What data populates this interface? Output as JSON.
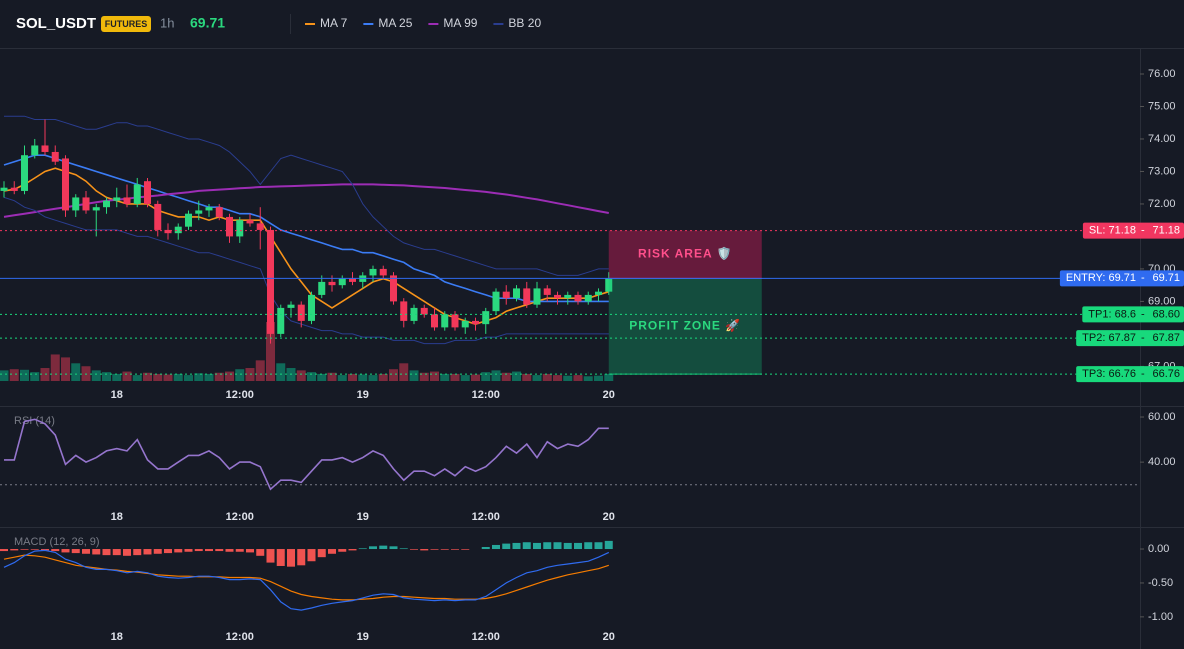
{
  "chart_data": {
    "type": "candlestick",
    "symbol": "SOL_USDT",
    "badge": "FUTURES",
    "interval": "1h",
    "last_price": 69.71,
    "categories": [
      null,
      null,
      null,
      null,
      null,
      null,
      null,
      null,
      null,
      null,
      null,
      "18",
      null,
      null,
      null,
      null,
      null,
      null,
      null,
      null,
      null,
      null,
      null,
      "12:00",
      null,
      null,
      null,
      null,
      null,
      null,
      null,
      null,
      null,
      null,
      null,
      "19",
      null,
      null,
      null,
      null,
      null,
      null,
      null,
      null,
      null,
      null,
      null,
      "12:00",
      null,
      null,
      null,
      null,
      null,
      null,
      null,
      null,
      null,
      null,
      null,
      "20"
    ],
    "open": [
      72.4,
      72.5,
      72.4,
      73.5,
      73.8,
      73.6,
      73.4,
      71.8,
      72.2,
      71.8,
      71.9,
      72.1,
      72.2,
      72.0,
      72.7,
      72.0,
      71.2,
      71.1,
      71.3,
      71.7,
      71.8,
      71.9,
      71.6,
      71.0,
      71.5,
      71.4,
      71.2,
      68.0,
      68.8,
      68.9,
      68.4,
      69.2,
      69.6,
      69.5,
      69.7,
      69.6,
      69.8,
      70.0,
      69.8,
      69.0,
      68.4,
      68.8,
      68.6,
      68.2,
      68.6,
      68.2,
      68.4,
      68.3,
      68.7,
      69.3,
      69.1,
      69.4,
      68.9,
      69.4,
      69.2,
      69.1,
      69.2,
      69.0,
      69.2,
      69.3
    ],
    "high": [
      72.7,
      72.7,
      73.8,
      74.0,
      74.6,
      73.8,
      73.5,
      72.3,
      72.4,
      72.0,
      72.2,
      72.5,
      72.6,
      72.8,
      72.8,
      72.1,
      71.4,
      71.4,
      71.8,
      72.1,
      72.0,
      72.0,
      71.7,
      71.6,
      71.7,
      71.9,
      71.3,
      68.9,
      69.0,
      69.0,
      69.3,
      69.8,
      69.8,
      69.8,
      69.9,
      69.9,
      70.1,
      70.1,
      69.9,
      69.1,
      68.9,
      68.9,
      68.8,
      68.7,
      68.7,
      68.5,
      68.5,
      68.8,
      69.4,
      69.5,
      69.5,
      69.6,
      69.6,
      69.5,
      69.3,
      69.3,
      69.3,
      69.3,
      69.4,
      69.9
    ],
    "low": [
      72.2,
      72.3,
      72.3,
      73.4,
      73.5,
      73.2,
      71.6,
      71.6,
      71.7,
      71.0,
      71.7,
      71.9,
      71.9,
      71.9,
      71.9,
      71.0,
      70.9,
      70.9,
      71.2,
      71.5,
      71.6,
      71.5,
      70.8,
      70.8,
      71.3,
      70.6,
      67.7,
      67.9,
      68.5,
      68.2,
      68.3,
      69.1,
      69.3,
      69.4,
      69.5,
      69.4,
      69.6,
      69.7,
      68.9,
      68.2,
      68.3,
      68.5,
      68.1,
      68.1,
      68.1,
      68.0,
      68.1,
      68.0,
      68.6,
      68.9,
      69.0,
      68.8,
      68.8,
      69.0,
      68.9,
      68.9,
      68.9,
      68.9,
      69.0,
      69.2
    ],
    "close": [
      72.5,
      72.4,
      73.5,
      73.8,
      73.6,
      73.3,
      71.8,
      72.2,
      71.8,
      71.9,
      72.1,
      72.2,
      72.0,
      72.6,
      72.0,
      71.2,
      71.1,
      71.3,
      71.7,
      71.8,
      71.9,
      71.6,
      71.0,
      71.5,
      71.4,
      71.2,
      68.0,
      68.8,
      68.9,
      68.4,
      69.2,
      69.6,
      69.5,
      69.7,
      69.6,
      69.8,
      70.0,
      69.8,
      69.0,
      68.4,
      68.8,
      68.6,
      68.2,
      68.6,
      68.2,
      68.4,
      68.3,
      68.7,
      69.3,
      69.1,
      69.4,
      68.9,
      69.4,
      69.2,
      69.1,
      69.2,
      69.0,
      69.2,
      69.3,
      69.71
    ],
    "up_color": "#2bd97f",
    "down_color": "#f2385a",
    "volume": [
      18,
      20,
      19,
      15,
      22,
      45,
      40,
      30,
      25,
      18,
      15,
      12,
      16,
      10,
      14,
      12,
      11,
      12,
      10,
      13,
      12,
      14,
      16,
      20,
      22,
      35,
      100,
      30,
      22,
      18,
      15,
      12,
      14,
      10,
      12,
      11,
      10,
      12,
      20,
      30,
      18,
      14,
      16,
      12,
      12,
      10,
      11,
      15,
      18,
      14,
      16,
      12,
      10,
      12,
      10,
      9,
      10,
      8,
      9,
      12
    ],
    "volume_up_color": "#0f6b5a",
    "volume_down_color": "#7d2a3d",
    "overlays": [
      {
        "name": "MA 7",
        "color": "#f7931a",
        "values": [
          72.4,
          72.45,
          72.6,
          72.8,
          73.0,
          73.1,
          73.0,
          72.9,
          72.7,
          72.4,
          72.2,
          72.1,
          72.0,
          72.0,
          72.0,
          71.8,
          71.7,
          71.6,
          71.6,
          71.6,
          71.5,
          71.6,
          71.5,
          71.5,
          71.5,
          71.5,
          71.0,
          70.5,
          70.0,
          69.6,
          69.2,
          69.0,
          68.8,
          69.0,
          69.2,
          69.4,
          69.6,
          69.7,
          69.6,
          69.4,
          69.2,
          69.0,
          68.8,
          68.6,
          68.5,
          68.4,
          68.3,
          68.4,
          68.5,
          68.7,
          68.8,
          68.9,
          69.0,
          69.1,
          69.1,
          69.1,
          69.1,
          69.1,
          69.2,
          69.3
        ]
      },
      {
        "name": "MA 25",
        "color": "#3b7cf5",
        "values": [
          73.2,
          73.3,
          73.4,
          73.5,
          73.5,
          73.4,
          73.3,
          73.2,
          73.1,
          73.0,
          72.9,
          72.8,
          72.7,
          72.6,
          72.5,
          72.4,
          72.3,
          72.2,
          72.1,
          72.0,
          71.9,
          71.9,
          71.8,
          71.7,
          71.7,
          71.6,
          71.4,
          71.2,
          71.1,
          71.0,
          70.9,
          70.8,
          70.7,
          70.6,
          70.6,
          70.5,
          70.5,
          70.4,
          70.3,
          70.2,
          70.0,
          69.9,
          69.8,
          69.6,
          69.5,
          69.4,
          69.3,
          69.2,
          69.1,
          69.1,
          69.1,
          69.0,
          69.0,
          69.0,
          69.0,
          69.0,
          69.0,
          69.0,
          69.0,
          69.0
        ]
      },
      {
        "name": "MA 99",
        "color": "#9c2db5",
        "values": [
          71.6,
          71.65,
          71.7,
          71.75,
          71.8,
          71.85,
          71.9,
          71.95,
          72.0,
          72.05,
          72.1,
          72.13,
          72.16,
          72.2,
          72.23,
          72.26,
          72.3,
          72.33,
          72.36,
          72.4,
          72.42,
          72.44,
          72.46,
          72.48,
          72.5,
          72.52,
          72.53,
          72.54,
          72.55,
          72.56,
          72.57,
          72.58,
          72.59,
          72.6,
          72.6,
          72.6,
          72.6,
          72.59,
          72.58,
          72.57,
          72.55,
          72.53,
          72.51,
          72.49,
          72.46,
          72.43,
          72.4,
          72.37,
          72.33,
          72.29,
          72.24,
          72.19,
          72.14,
          72.08,
          72.02,
          71.96,
          71.9,
          71.84,
          71.78,
          71.72
        ]
      },
      {
        "name": "BB 20",
        "color": "#2a3d8f",
        "upper": [
          74.7,
          74.7,
          74.7,
          74.6,
          74.6,
          74.6,
          74.5,
          74.4,
          74.3,
          74.3,
          74.4,
          74.5,
          74.5,
          74.4,
          74.4,
          74.3,
          74.2,
          74.1,
          74.0,
          74.0,
          73.9,
          73.8,
          73.6,
          73.3,
          73.0,
          72.6,
          73.0,
          73.4,
          73.5,
          73.4,
          73.3,
          73.2,
          73.1,
          73.0,
          72.6,
          72.0,
          71.6,
          71.3,
          71.0,
          70.8,
          70.7,
          70.6,
          70.6,
          70.5,
          70.4,
          70.3,
          70.2,
          70.1,
          70.0,
          70.0,
          70.0,
          70.0,
          70.0,
          69.9,
          69.8,
          69.8,
          69.8,
          69.9,
          70.0,
          70.0
        ],
        "lower": [
          72.2,
          72.1,
          71.9,
          71.8,
          71.6,
          71.5,
          71.4,
          71.3,
          71.2,
          71.2,
          71.2,
          71.2,
          71.1,
          71.0,
          71.0,
          70.9,
          70.8,
          70.7,
          70.6,
          70.5,
          70.5,
          70.4,
          70.3,
          70.2,
          70.1,
          70.0,
          69.2,
          68.7,
          68.4,
          68.3,
          68.2,
          68.1,
          68.1,
          68.0,
          68.0,
          67.9,
          67.9,
          67.9,
          67.8,
          67.8,
          67.8,
          67.7,
          67.7,
          67.7,
          67.8,
          67.8,
          67.8,
          67.9,
          67.9,
          68.0,
          68.0,
          68.0,
          68.0,
          68.0,
          68.0,
          68.0,
          68.0,
          68.0,
          68.0,
          68.0
        ]
      }
    ],
    "ylim": [
      66.55,
      76.8
    ],
    "yticks": [
      {
        "value": 76,
        "label": "76.00"
      },
      {
        "value": 75,
        "label": "75.00"
      },
      {
        "value": 74,
        "label": "74.00"
      },
      {
        "value": 73,
        "label": "73.00"
      },
      {
        "value": 72,
        "label": "72.00"
      },
      {
        "value": 70,
        "label": "70.00"
      },
      {
        "value": 69,
        "label": "69.00"
      },
      {
        "value": 67,
        "label": "67.00"
      }
    ],
    "price_lines": [
      {
        "name": "SL: 71.18",
        "value": 71.18,
        "value_label": "71.18",
        "color": "#f23660",
        "style": "dotted"
      },
      {
        "name": "ENTRY: 69.71",
        "value": 69.71,
        "value_label": "69.71",
        "color": "#2f6bf0",
        "style": "solid"
      },
      {
        "name": "TP1: 68.6",
        "value": 68.6,
        "value_label": "68.60",
        "color": "#18d97c",
        "style": "dotted"
      },
      {
        "name": "TP2: 67.87",
        "value": 67.87,
        "value_label": "67.87",
        "color": "#18d97c",
        "style": "dotted"
      },
      {
        "name": "TP3: 66.76",
        "value": 66.76,
        "value_label": "66.76",
        "color": "#18d97c",
        "style": "dotted"
      }
    ],
    "zones": [
      {
        "label": "RISK AREA 🛡️",
        "color": "#e91e63"
      },
      {
        "label": "PROFIT ZONE 🚀",
        "color": "#12c27a"
      }
    ],
    "rsi": {
      "title": "RSI (14)",
      "color": "#9575cd",
      "values": [
        41,
        41,
        58,
        59,
        57,
        52,
        39,
        43,
        40,
        42,
        45,
        46,
        45,
        50,
        41,
        37,
        37,
        40,
        43,
        43,
        45,
        42,
        37,
        40,
        40,
        38,
        28,
        32,
        32,
        31,
        36,
        41,
        41,
        42,
        40,
        42,
        45,
        43,
        37,
        32,
        36,
        36,
        34,
        37,
        34,
        38,
        36,
        38,
        42,
        47,
        44,
        48,
        42,
        49,
        46,
        48,
        47,
        50,
        55,
        55
      ],
      "ylim": [
        21,
        64
      ],
      "yticks": [
        {
          "value": 60,
          "label": "60.00"
        },
        {
          "value": 40,
          "label": "40.00"
        }
      ],
      "ref_line": 30
    },
    "macd": {
      "title": "MACD (12, 26, 9)",
      "macd_color": "#2f6bf0",
      "signal_color": "#f57c00",
      "up_color": "#26a69a",
      "down_color": "#ef5350",
      "macd": [
        -0.27,
        -0.2,
        -0.1,
        -0.03,
        -0.02,
        -0.05,
        -0.15,
        -0.2,
        -0.27,
        -0.3,
        -0.3,
        -0.32,
        -0.35,
        -0.33,
        -0.35,
        -0.4,
        -0.42,
        -0.43,
        -0.42,
        -0.4,
        -0.4,
        -0.42,
        -0.45,
        -0.45,
        -0.44,
        -0.45,
        -0.6,
        -0.78,
        -0.88,
        -0.9,
        -0.87,
        -0.83,
        -0.8,
        -0.78,
        -0.76,
        -0.72,
        -0.68,
        -0.66,
        -0.67,
        -0.72,
        -0.74,
        -0.75,
        -0.76,
        -0.75,
        -0.76,
        -0.75,
        -0.75,
        -0.7,
        -0.6,
        -0.5,
        -0.42,
        -0.35,
        -0.32,
        -0.27,
        -0.24,
        -0.22,
        -0.2,
        -0.18,
        -0.12,
        -0.05
      ],
      "signal": [
        -0.15,
        -0.12,
        -0.09,
        -0.1,
        -0.12,
        -0.16,
        -0.2,
        -0.24,
        -0.26,
        -0.28,
        -0.3,
        -0.31,
        -0.33,
        -0.34,
        -0.36,
        -0.38,
        -0.39,
        -0.4,
        -0.4,
        -0.41,
        -0.41,
        -0.41,
        -0.42,
        -0.42,
        -0.42,
        -0.43,
        -0.48,
        -0.55,
        -0.62,
        -0.67,
        -0.7,
        -0.72,
        -0.74,
        -0.75,
        -0.75,
        -0.74,
        -0.73,
        -0.71,
        -0.7,
        -0.7,
        -0.71,
        -0.72,
        -0.73,
        -0.73,
        -0.74,
        -0.74,
        -0.74,
        -0.73,
        -0.7,
        -0.66,
        -0.61,
        -0.56,
        -0.51,
        -0.46,
        -0.42,
        -0.38,
        -0.35,
        -0.32,
        -0.29,
        -0.24
      ],
      "histogram": [
        -0.03,
        -0.02,
        -0.01,
        -0.01,
        -0.02,
        -0.03,
        -0.05,
        -0.06,
        -0.07,
        -0.08,
        -0.09,
        -0.09,
        -0.1,
        -0.09,
        -0.08,
        -0.07,
        -0.06,
        -0.05,
        -0.04,
        -0.03,
        -0.03,
        -0.03,
        -0.04,
        -0.04,
        -0.05,
        -0.1,
        -0.2,
        -0.25,
        -0.26,
        -0.24,
        -0.18,
        -0.12,
        -0.07,
        -0.04,
        -0.02,
        0.01,
        0.04,
        0.05,
        0.04,
        0.01,
        -0.01,
        -0.02,
        -0.01,
        -0.01,
        -0.01,
        -0.01,
        0.0,
        0.03,
        0.06,
        0.08,
        0.09,
        0.1,
        0.09,
        0.1,
        0.1,
        0.09,
        0.09,
        0.1,
        0.1,
        0.12
      ],
      "ylim": [
        -1.12,
        0.31
      ],
      "yticks": [
        {
          "value": 0,
          "label": "0.00"
        },
        {
          "value": -0.5,
          "label": "-0.50"
        },
        {
          "value": -1,
          "label": "-1.00"
        }
      ]
    }
  }
}
